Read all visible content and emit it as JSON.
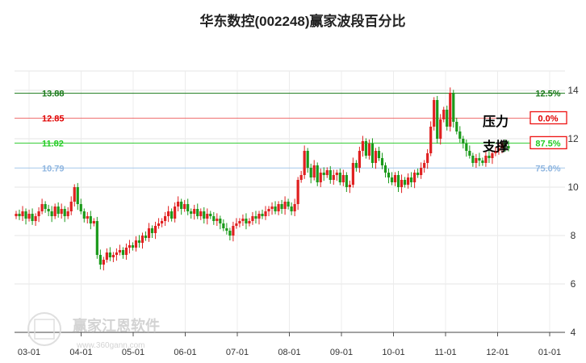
{
  "chart_data": {
    "type": "candlestick",
    "title": "华东数控(002248)赢家波段百分比",
    "ylim": [
      4,
      14.8
    ],
    "y_ticks": [
      4,
      6,
      8,
      10,
      12,
      14
    ],
    "x_ticks": [
      "03-01",
      "04-01",
      "05-01",
      "06-01",
      "07-01",
      "08-01",
      "09-01",
      "10-01",
      "11-01",
      "12-01",
      "01-01"
    ],
    "levels": [
      {
        "price": 13.88,
        "label": "13.88",
        "percent": "12.5%",
        "color": "#1a7a1a",
        "text_color": "#1a7a1a",
        "boxed": false
      },
      {
        "price": 12.85,
        "label": "12.85",
        "percent": "0.0%",
        "color": "#ef7070",
        "text_color": "#e00000",
        "boxed": true
      },
      {
        "price": 11.82,
        "label": "11.82",
        "percent": "87.5%",
        "color": "#33cc33",
        "text_color": "#22cc22",
        "boxed": true
      },
      {
        "price": 10.79,
        "label": "10.79",
        "percent": "75.0%",
        "color": "#a6c8ea",
        "text_color": "#8fb6e0",
        "boxed": false
      }
    ],
    "annotations": {
      "resistance": "压力",
      "support": "支撑"
    },
    "grid": true,
    "series_close": [
      8.9,
      8.8,
      9.0,
      8.7,
      8.9,
      8.6,
      8.8,
      9.0,
      9.3,
      9.1,
      9.0,
      8.8,
      9.2,
      8.9,
      9.1,
      8.8,
      9.0,
      9.4,
      10.0,
      9.3,
      9.0,
      8.7,
      8.8,
      8.5,
      8.6,
      7.2,
      6.8,
      7.0,
      7.3,
      7.1,
      7.2,
      7.3,
      7.4,
      7.2,
      7.5,
      7.6,
      7.5,
      7.8,
      7.7,
      8.0,
      7.9,
      8.3,
      8.1,
      8.4,
      8.5,
      8.6,
      8.8,
      9.0,
      8.7,
      9.2,
      9.4,
      9.1,
      9.3,
      9.0,
      8.9,
      9.1,
      8.8,
      9.0,
      8.7,
      8.9,
      8.8,
      8.6,
      8.7,
      8.5,
      8.3,
      8.2,
      8.0,
      8.4,
      8.5,
      8.6,
      8.7,
      8.5,
      8.6,
      8.8,
      8.7,
      8.9,
      8.8,
      9.0,
      9.1,
      9.2,
      9.0,
      9.3,
      9.1,
      9.4,
      9.2,
      9.0,
      9.3,
      10.3,
      10.5,
      11.5,
      10.8,
      10.4,
      10.9,
      10.2,
      10.6,
      10.5,
      10.7,
      10.3,
      10.5,
      10.6,
      10.2,
      10.5,
      10.0,
      10.1,
      11.0,
      10.8,
      11.5,
      11.9,
      11.3,
      11.8,
      11.0,
      11.5,
      11.2,
      10.9,
      10.6,
      10.4,
      10.2,
      10.5,
      10.0,
      10.3,
      10.1,
      10.4,
      10.2,
      10.6,
      10.5,
      10.8,
      11.0,
      11.4,
      12.5,
      13.6,
      12.0,
      12.8,
      13.2,
      12.5,
      13.9,
      12.7,
      12.3,
      12.0,
      11.8,
      11.5,
      11.3,
      11.0,
      11.2,
      11.1,
      11.0,
      11.3,
      11.2,
      11.4,
      11.5,
      11.6,
      11.8,
      11.7,
      11.6
    ]
  },
  "watermark": {
    "name": "赢家江恩软件",
    "url": "www.360gann.com",
    "seal": "赢家江恩"
  }
}
